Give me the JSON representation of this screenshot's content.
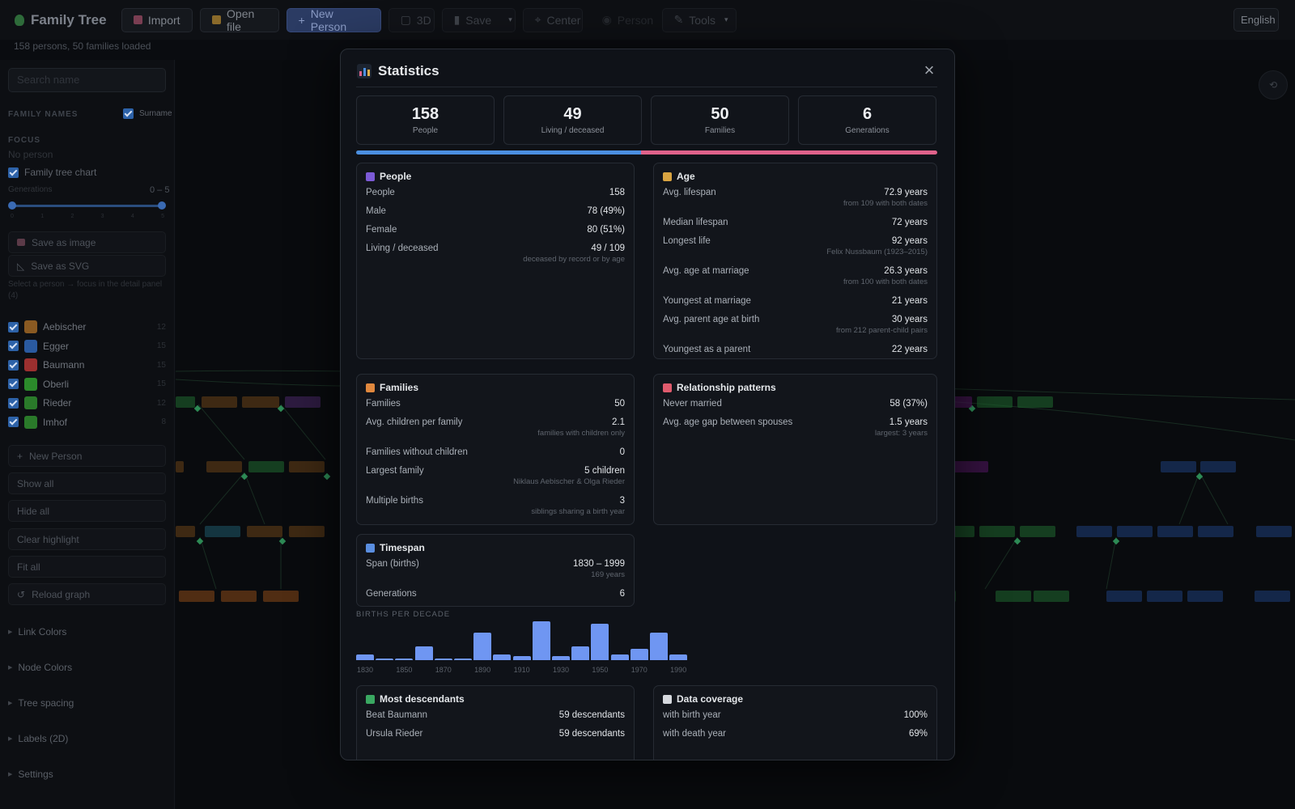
{
  "toolbar": {
    "app_title": "Family Tree",
    "import": "Import",
    "open_file": "Open file",
    "new_person": "New Person",
    "three_d": "3D",
    "save": "Save",
    "center": "Center",
    "person": "Person",
    "tools": "Tools",
    "language": "English"
  },
  "status": "158 persons, 50 families loaded",
  "sidebar": {
    "search_placeholder": "Search name",
    "family_names_label": "FAMILY NAMES",
    "surname_label": "Surname",
    "focus_label": "FOCUS",
    "focus_value": "No person",
    "family_tree_chart": "Family tree chart",
    "generations_label": "Generations",
    "generations_range": "0 – 5",
    "save_image": "Save as image",
    "save_svg": "Save as SVG",
    "hint": "Select a person → focus in the detail panel (4)",
    "families": [
      {
        "name": "Aebischer",
        "color": "#8a5a22",
        "count": "12"
      },
      {
        "name": "Egger",
        "color": "#2a5aa0",
        "count": "15"
      },
      {
        "name": "Baumann",
        "color": "#9b2f2f",
        "count": "15"
      },
      {
        "name": "Oberli",
        "color": "#2b8a2b",
        "count": "15"
      },
      {
        "name": "Rieder",
        "color": "#2a7a2a",
        "count": "12"
      },
      {
        "name": "Imhof",
        "color": "#2a7a2a",
        "count": "8"
      }
    ],
    "new_person": "New Person",
    "show_all": "Show all",
    "hide_all": "Hide all",
    "clear_highlight": "Clear highlight",
    "fit_all": "Fit all",
    "reload_graph": "Reload graph",
    "link_colors": "Link Colors",
    "node_colors": "Node Colors",
    "tree_spacing": "Tree spacing",
    "labels_2d": "Labels (2D)",
    "settings": "Settings"
  },
  "modal": {
    "title": "Statistics",
    "close": "×",
    "kpis": [
      {
        "value": "158",
        "label": "People"
      },
      {
        "value": "49",
        "label": "Living / deceased"
      },
      {
        "value": "50",
        "label": "Families"
      },
      {
        "value": "6",
        "label": "Generations"
      }
    ],
    "male_fraction": 0.49,
    "people": {
      "title": "People",
      "rows": [
        {
          "label": "People",
          "value": "158",
          "sub": ""
        },
        {
          "label": "Male",
          "value": "78 (49%)",
          "sub": ""
        },
        {
          "label": "Female",
          "value": "80 (51%)",
          "sub": ""
        },
        {
          "label": "Living / deceased",
          "value": "49 / 109",
          "sub": "deceased by record or by age"
        }
      ]
    },
    "age": {
      "title": "Age",
      "rows": [
        {
          "label": "Avg. lifespan",
          "value": "72.9 years",
          "sub": "from 109 with both dates"
        },
        {
          "label": "Median lifespan",
          "value": "72 years",
          "sub": ""
        },
        {
          "label": "Longest life",
          "value": "92 years",
          "sub": "Felix Nussbaum (1923–2015)"
        },
        {
          "label": "Avg. age at marriage",
          "value": "26.3 years",
          "sub": "from 100 with both dates"
        },
        {
          "label": "Youngest at marriage",
          "value": "21 years",
          "sub": ""
        },
        {
          "label": "Avg. parent age at birth",
          "value": "30 years",
          "sub": "from 212 parent-child pairs"
        },
        {
          "label": "Youngest as a parent",
          "value": "22 years",
          "sub": ""
        }
      ]
    },
    "families": {
      "title": "Families",
      "rows": [
        {
          "label": "Families",
          "value": "50",
          "sub": ""
        },
        {
          "label": "Avg. children per family",
          "value": "2.1",
          "sub": "families with children only"
        },
        {
          "label": "Families without children",
          "value": "0",
          "sub": ""
        },
        {
          "label": "Largest family",
          "value": "5 children",
          "sub": "Niklaus Aebischer & Olga Rieder"
        },
        {
          "label": "Multiple births",
          "value": "3",
          "sub": "siblings sharing a birth year"
        }
      ]
    },
    "relationships": {
      "title": "Relationship patterns",
      "rows": [
        {
          "label": "Never married",
          "value": "58 (37%)",
          "sub": ""
        },
        {
          "label": "Avg. age gap between spouses",
          "value": "1.5 years",
          "sub": "largest: 3 years"
        }
      ]
    },
    "timespan": {
      "title": "Timespan",
      "rows": [
        {
          "label": "Span (births)",
          "value": "1830 – 1999",
          "sub": "169 years"
        },
        {
          "label": "Generations",
          "value": "6",
          "sub": ""
        }
      ]
    },
    "descendants": {
      "title": "Most descendants",
      "rows": [
        {
          "label": "Beat Baumann",
          "value": "59 descendants",
          "sub": ""
        },
        {
          "label": "Ursula Rieder",
          "value": "59 descendants",
          "sub": ""
        }
      ]
    },
    "coverage": {
      "title": "Data coverage",
      "rows": [
        {
          "label": "with birth year",
          "value": "100%",
          "sub": ""
        },
        {
          "label": "with death year",
          "value": "69%",
          "sub": ""
        }
      ]
    },
    "births_label": "BIRTHS PER DECADE"
  },
  "chart_data": {
    "type": "bar",
    "title": "BIRTHS PER DECADE",
    "categories": [
      "1830",
      "1840",
      "1850",
      "1860",
      "1870",
      "1880",
      "1890",
      "1900",
      "1910",
      "1920",
      "1930",
      "1940",
      "1950",
      "1960",
      "1970",
      "1980",
      "1990"
    ],
    "tick_labels": [
      "1830",
      "1850",
      "1870",
      "1890",
      "1910",
      "1930",
      "1950",
      "1970",
      "1990"
    ],
    "values": [
      2,
      0.5,
      0.5,
      5,
      0.5,
      0.5,
      10,
      2,
      1.5,
      14,
      1.5,
      5,
      13,
      2,
      4,
      10,
      2
    ],
    "ylim": [
      0,
      14
    ],
    "color": "#6f96f2"
  }
}
